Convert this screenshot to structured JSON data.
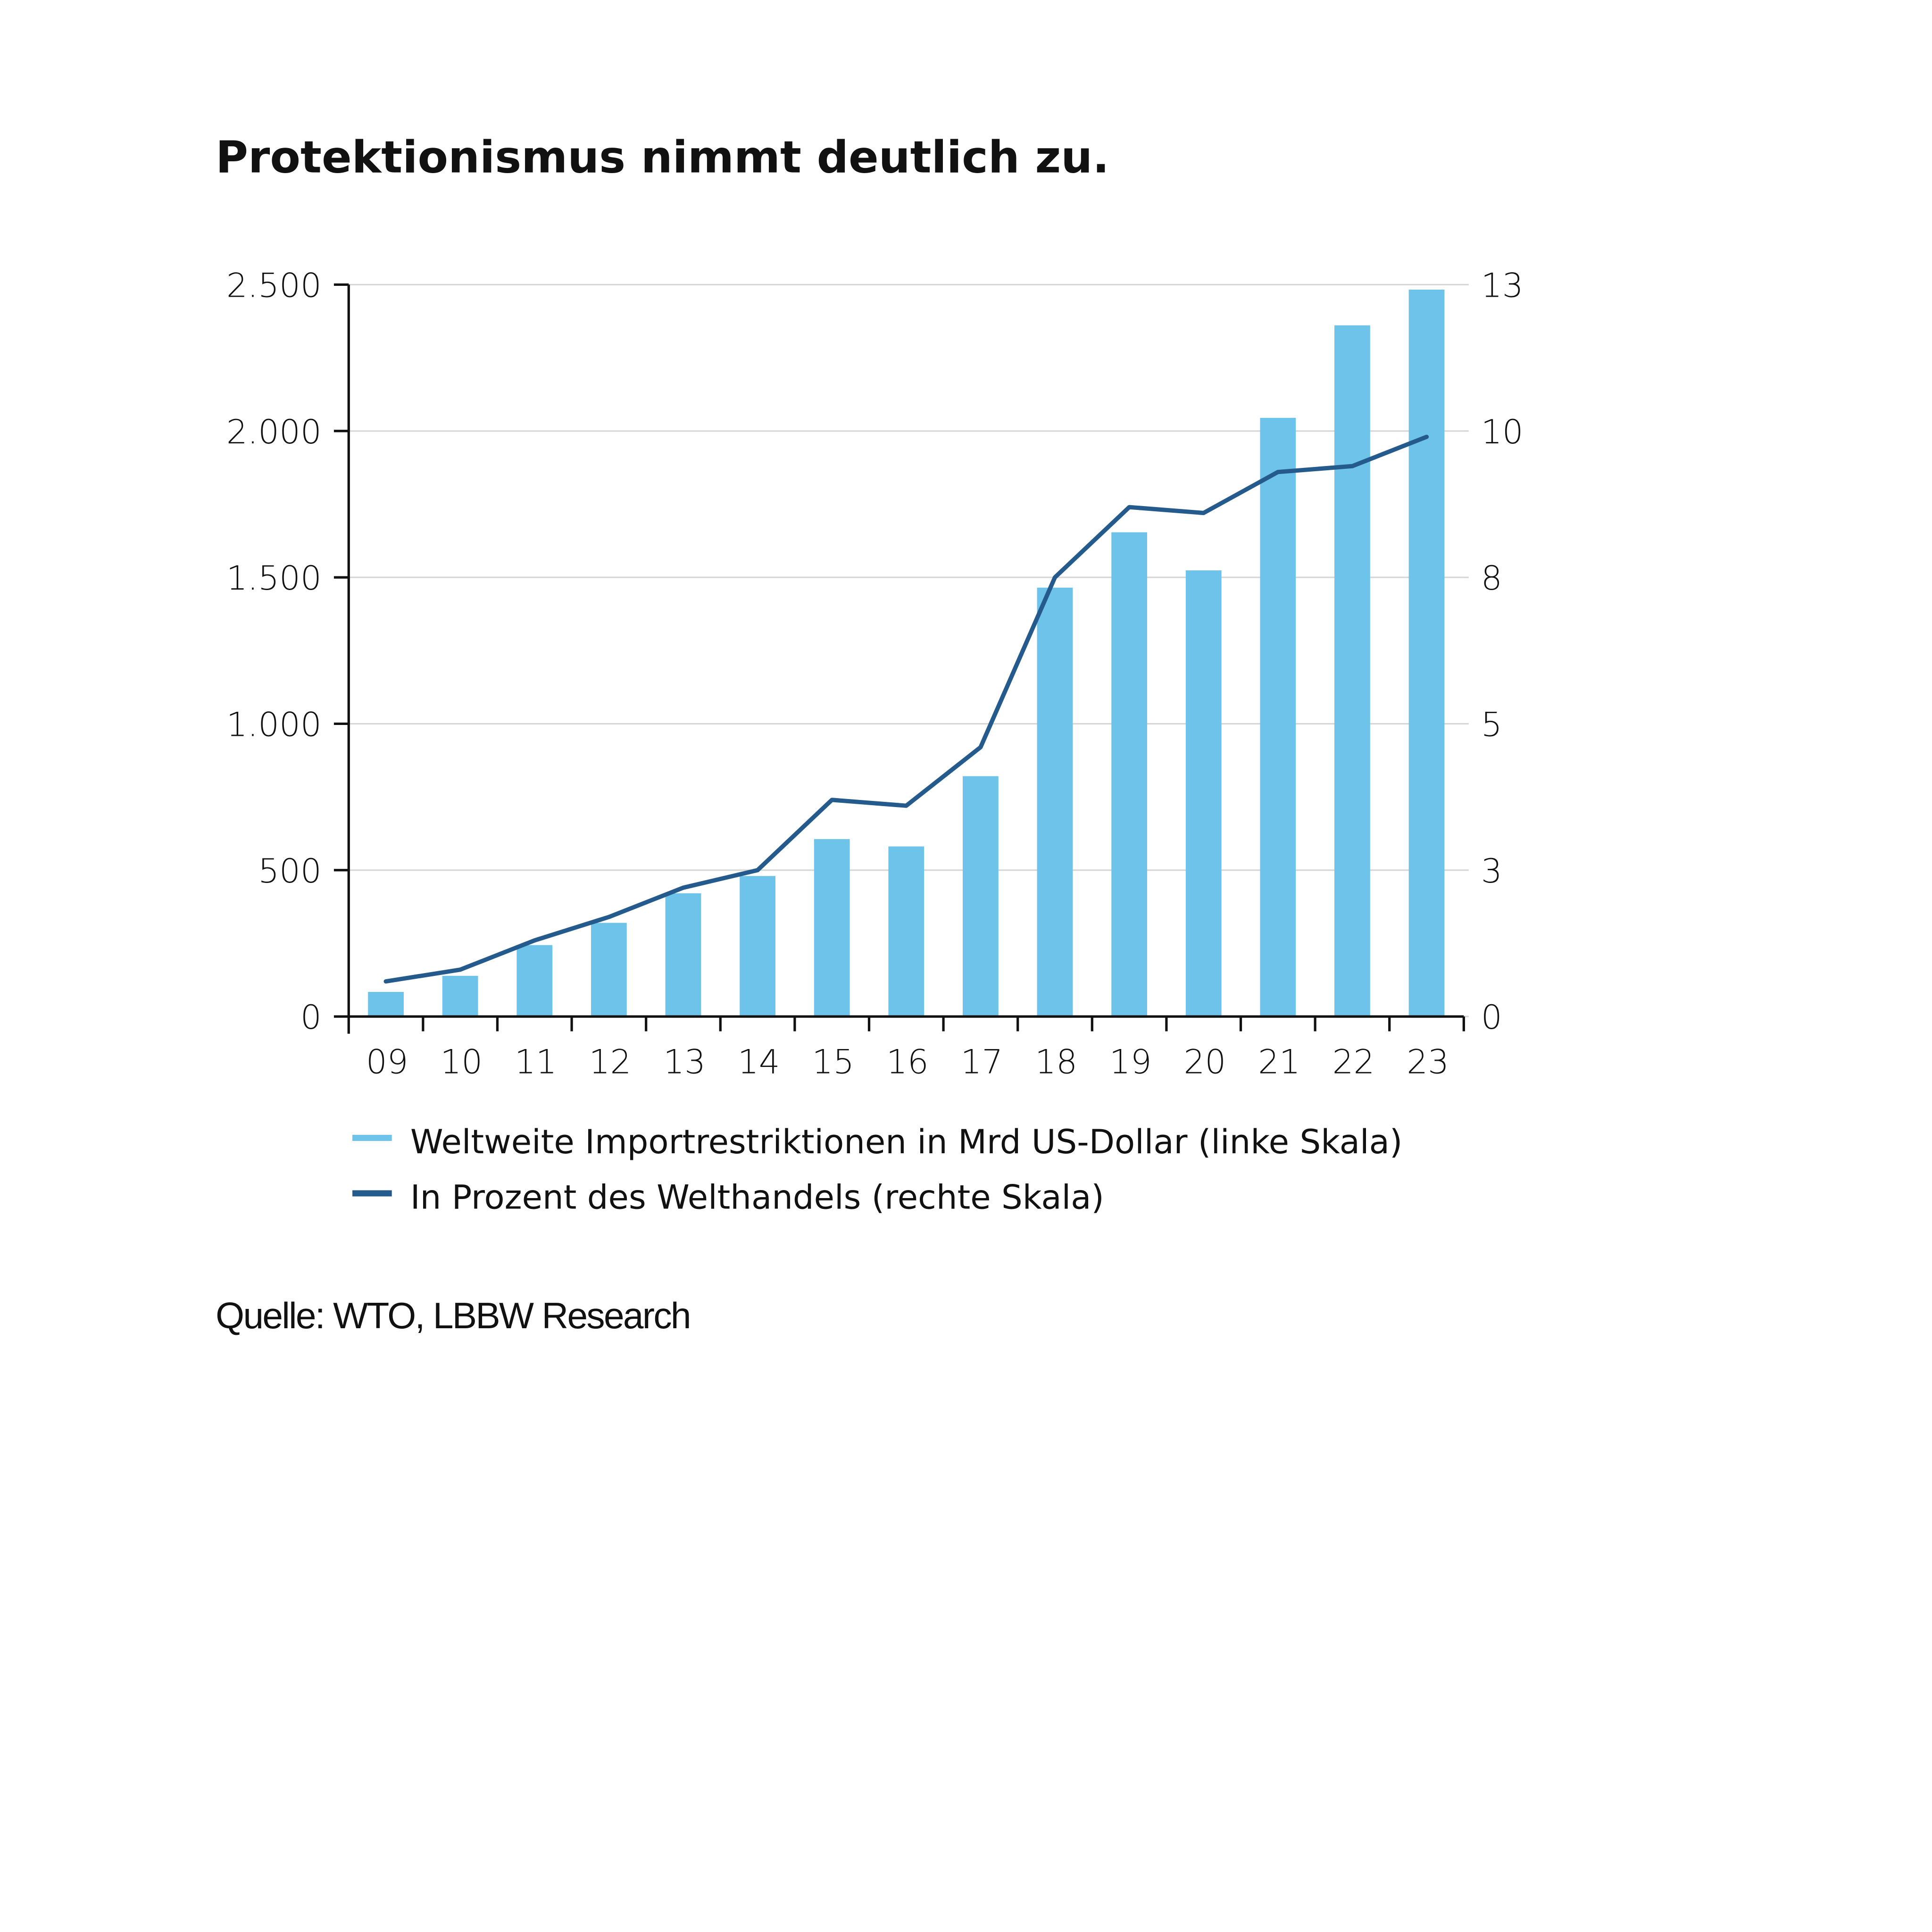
{
  "chart_data": {
    "type": "bar+line",
    "title": "Protektionismus nimmt deutlich zu.",
    "categories": [
      "09",
      "10",
      "11",
      "12",
      "13",
      "14",
      "15",
      "16",
      "17",
      "18",
      "19",
      "20",
      "21",
      "22",
      "23"
    ],
    "series": [
      {
        "name": "Weltweite Importrestriktionen in Mrd US-Dollar (linke Skala)",
        "type": "bar",
        "axis": "left",
        "color": "#6EC3EA",
        "values": [
          84,
          139,
          244,
          320,
          421,
          480,
          606,
          581,
          821,
          1465,
          1654,
          1524,
          2045,
          2361,
          2483
        ]
      },
      {
        "name": "In Prozent des Welthandels (rechte Skala)",
        "type": "line",
        "axis": "right",
        "color": "#245B8C",
        "values": [
          0.6,
          0.8,
          1.3,
          1.7,
          2.2,
          2.5,
          3.7,
          3.6,
          4.6,
          7.5,
          8.7,
          8.6,
          9.3,
          9.4,
          9.9
        ]
      }
    ],
    "left_axis": {
      "ylim": [
        0,
        2500
      ],
      "ticks": [
        0,
        500,
        1000,
        1500,
        2000,
        2500
      ],
      "tick_labels": [
        "0",
        "500",
        "1.000",
        "1.500",
        "2.000",
        "2.500"
      ]
    },
    "right_axis": {
      "ylim": [
        0,
        12.5
      ],
      "ticks": [
        0,
        2.5,
        5,
        7.5,
        10,
        12.5
      ],
      "tick_labels": [
        "0",
        "3",
        "5",
        "8",
        "10",
        "13"
      ]
    },
    "grid": true,
    "legend_position": "bottom",
    "source": "Quelle: WTO, LBBW Research"
  }
}
